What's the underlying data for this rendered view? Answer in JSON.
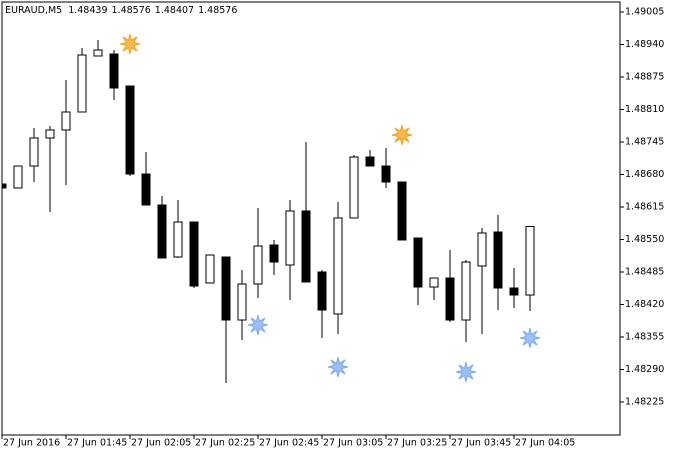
{
  "chart_data": {
    "type": "candlestick",
    "symbol": "EURAUD,M5",
    "categories": [
      "27 Jun 2016",
      null,
      null,
      null,
      "27 Jun 01:45",
      null,
      null,
      null,
      "27 Jun 02:05",
      null,
      null,
      null,
      "27 Jun 02:25",
      null,
      null,
      null,
      "27 Jun 02:45",
      null,
      null,
      null,
      "27 Jun 03:05",
      null,
      null,
      null,
      "27 Jun 03:25",
      null,
      null,
      null,
      "27 Jun 03:45",
      null,
      null,
      null,
      "27 Jun 04:05",
      null
    ],
    "open": [
      1.48661,
      1.48653,
      1.48697,
      1.48753,
      1.48769,
      1.48805,
      1.48917,
      1.48921,
      1.48857,
      1.48681,
      1.48619,
      1.48515,
      1.48585,
      1.48463,
      1.48515,
      1.48389,
      1.48461,
      1.48539,
      1.48499,
      1.48607,
      1.48485,
      1.48401,
      1.48593,
      1.48715,
      1.48697,
      1.48665,
      1.48553,
      1.48455,
      1.48473,
      1.48389,
      1.48497,
      1.48565,
      1.48453,
      1.48439
    ],
    "high": [
      1.48661,
      1.48697,
      1.48773,
      1.48777,
      1.48869,
      1.48933,
      1.48949,
      1.48929,
      1.48857,
      1.48725,
      1.48637,
      1.48629,
      1.48585,
      1.48519,
      1.48515,
      1.48489,
      1.48613,
      1.48549,
      1.48629,
      1.48745,
      1.48489,
      1.48625,
      1.48719,
      1.48729,
      1.48733,
      1.48665,
      1.48553,
      1.48473,
      1.48529,
      1.48509,
      1.48573,
      1.48599,
      1.48493,
      1.48576
    ],
    "low": [
      1.48653,
      1.48653,
      1.48665,
      1.48605,
      1.48659,
      1.48805,
      1.48917,
      1.48829,
      1.48677,
      1.48619,
      1.48513,
      1.48513,
      1.48453,
      1.48463,
      1.48263,
      1.48349,
      1.48433,
      1.48479,
      1.48429,
      1.48465,
      1.48353,
      1.48361,
      1.48593,
      1.48697,
      1.48653,
      1.48549,
      1.48419,
      1.48429,
      1.48385,
      1.48345,
      1.48361,
      1.48409,
      1.48413,
      1.48407
    ],
    "close": [
      1.48653,
      1.48697,
      1.48753,
      1.48769,
      1.48805,
      1.48919,
      1.48929,
      1.48853,
      1.48681,
      1.48619,
      1.48513,
      1.48585,
      1.48457,
      1.48519,
      1.48389,
      1.48461,
      1.48537,
      1.48505,
      1.48607,
      1.48465,
      1.48409,
      1.48593,
      1.48715,
      1.48697,
      1.48665,
      1.48549,
      1.48455,
      1.48473,
      1.48389,
      1.48505,
      1.48563,
      1.48453,
      1.48439,
      1.48576
    ],
    "up_color": "#ffffff",
    "down_color": "#000000",
    "up_markers": {
      "color": "#f5a020",
      "values": [
        null,
        null,
        null,
        null,
        null,
        null,
        null,
        null,
        1.48941,
        null,
        null,
        null,
        null,
        null,
        null,
        null,
        null,
        null,
        null,
        null,
        null,
        null,
        null,
        null,
        null,
        1.48759,
        null,
        null,
        null,
        null,
        null,
        null,
        null,
        null
      ]
    },
    "down_markers": {
      "color": "#7eaaf0",
      "values": [
        null,
        null,
        null,
        null,
        null,
        null,
        null,
        null,
        null,
        null,
        null,
        null,
        null,
        null,
        null,
        null,
        1.48379,
        null,
        null,
        null,
        null,
        1.48295,
        null,
        null,
        null,
        null,
        null,
        null,
        null,
        1.48285,
        null,
        null,
        null,
        1.48353
      ]
    },
    "ylim": [
      1.48159,
      1.49025
    ],
    "yticks": [
      1.49005,
      {
        "value": 1.4894,
        "label": "1.48940"
      },
      1.48875,
      {
        "value": 1.4881,
        "label": "1.48810"
      },
      1.48745,
      {
        "value": 1.4868,
        "label": "1.48680"
      },
      1.48615,
      {
        "value": 1.4855,
        "label": "1.48550"
      },
      1.48485,
      {
        "value": 1.4842,
        "label": "1.48420"
      },
      1.48355,
      {
        "value": 1.4829,
        "label": "1.48290"
      },
      1.48225
    ]
  }
}
